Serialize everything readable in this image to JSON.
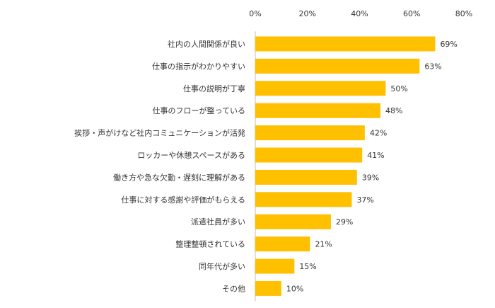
{
  "chart_data": {
    "type": "bar",
    "orientation": "horizontal",
    "categories": [
      "社内の人間関係が良い",
      "仕事の指示がわかりやすい",
      "仕事の説明が丁寧",
      "仕事のフローが整っている",
      "挨拶・声がけなど社内コミュニケーションが活発",
      "ロッカーや休憩スペースがある",
      "働き方や急な欠勤・遅刻に理解がある",
      "仕事に対する感謝や評価がもらえる",
      "派遣社員が多い",
      "整理整頓されている",
      "同年代が多い",
      "その他"
    ],
    "values": [
      69,
      63,
      50,
      48,
      42,
      41,
      39,
      37,
      29,
      21,
      15,
      10
    ],
    "value_labels": [
      "69%",
      "63%",
      "50%",
      "48%",
      "42%",
      "41%",
      "39%",
      "37%",
      "29%",
      "21%",
      "15%",
      "10%"
    ],
    "xlim": [
      0,
      80
    ],
    "x_ticks": [
      0,
      20,
      40,
      60,
      80
    ],
    "x_tick_labels": [
      "0%",
      "20%",
      "40%",
      "60%",
      "80%"
    ],
    "x_axis_position": "top",
    "grid": false,
    "legend": "none",
    "colors": {
      "bar": "#FFC000",
      "axis": "#BFBFBF",
      "text": "#333333"
    }
  }
}
